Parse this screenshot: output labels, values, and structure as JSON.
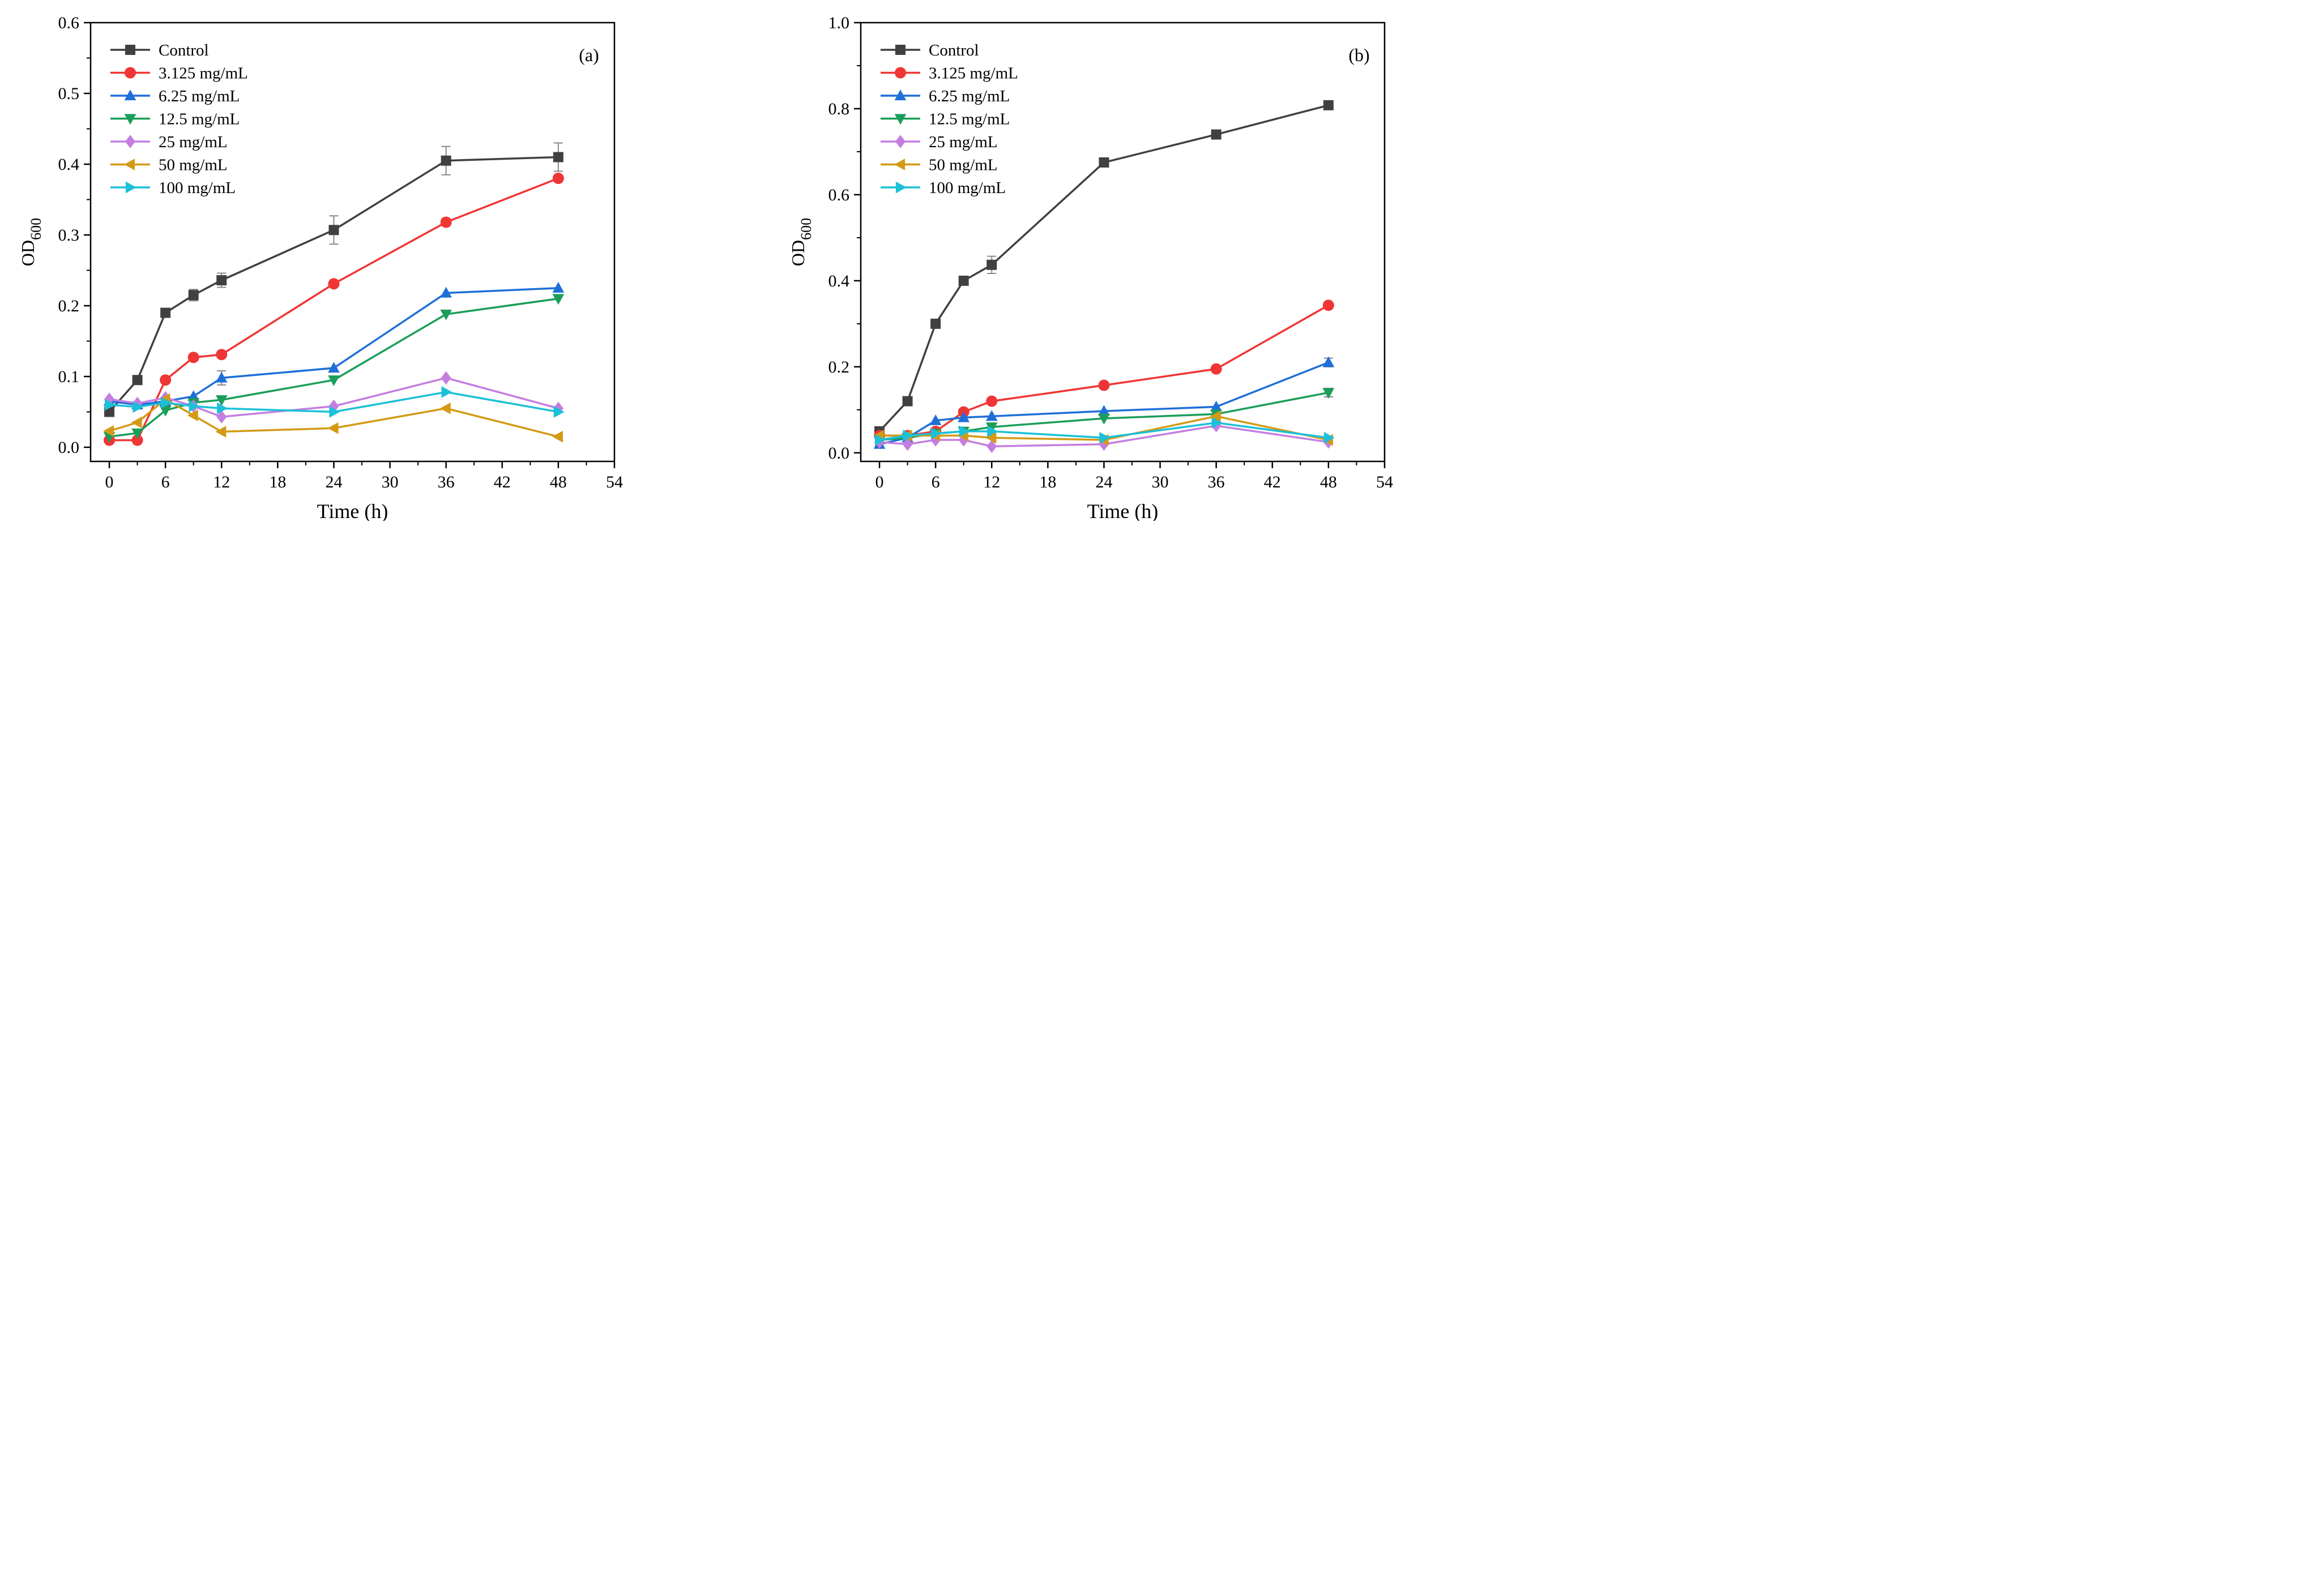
{
  "chart_data": [
    {
      "type": "line",
      "panel_label": "(a)",
      "xlabel": "Time (h)",
      "ylabel_main": "OD",
      "ylabel_sub": "600",
      "xlim": [
        -2,
        54
      ],
      "ylim": [
        -0.02,
        0.6
      ],
      "xticks": [
        0,
        6,
        12,
        18,
        24,
        30,
        36,
        42,
        48,
        54
      ],
      "xtick_labels": [
        "0",
        "6",
        "12",
        "18",
        "24",
        "30",
        "36",
        "42",
        "48",
        "54"
      ],
      "yticks": [
        0.0,
        0.1,
        0.2,
        0.3,
        0.4,
        0.5,
        0.6
      ],
      "ytick_labels": [
        "0.0",
        "0.1",
        "0.2",
        "0.3",
        "0.4",
        "0.5",
        "0.6"
      ],
      "legend_position": "top-left",
      "x": [
        0,
        3,
        6,
        9,
        12,
        24,
        36,
        48
      ],
      "series": [
        {
          "name": "Control",
          "color": "#404040",
          "marker": "square",
          "values": [
            0.05,
            0.095,
            0.19,
            0.215,
            0.236,
            0.307,
            0.405,
            0.41
          ],
          "errors": [
            0,
            0,
            0.005,
            0.008,
            0.01,
            0.02,
            0.02,
            0.02
          ]
        },
        {
          "name": "3.125 mg/mL",
          "color": "#f03535",
          "marker": "circle",
          "values": [
            0.01,
            0.01,
            0.095,
            0.127,
            0.131,
            0.231,
            0.318,
            0.38
          ],
          "errors": [
            0,
            0,
            0,
            0,
            0,
            0,
            0.005,
            0
          ]
        },
        {
          "name": "6.25 mg/mL",
          "color": "#1f6fd8",
          "marker": "triangle-up",
          "values": [
            0.065,
            0.06,
            0.065,
            0.072,
            0.098,
            0.112,
            0.218,
            0.225
          ],
          "errors": [
            0,
            0,
            0,
            0,
            0.01,
            0,
            0,
            0
          ]
        },
        {
          "name": "12.5 mg/mL",
          "color": "#1a9e5a",
          "marker": "triangle-down",
          "values": [
            0.015,
            0.02,
            0.052,
            0.063,
            0.067,
            0.095,
            0.188,
            0.21
          ],
          "errors": [
            0,
            0,
            0,
            0,
            0,
            0,
            0,
            0
          ]
        },
        {
          "name": "25 mg/mL",
          "color": "#c47ee0",
          "marker": "diamond",
          "values": [
            0.068,
            0.062,
            0.07,
            0.058,
            0.043,
            0.058,
            0.098,
            0.055
          ],
          "errors": [
            0,
            0,
            0,
            0,
            0,
            0,
            0,
            0
          ]
        },
        {
          "name": "50 mg/mL",
          "color": "#d49a15",
          "marker": "triangle-left",
          "values": [
            0.023,
            0.035,
            0.068,
            0.045,
            0.022,
            0.027,
            0.055,
            0.015
          ],
          "errors": [
            0,
            0,
            0,
            0,
            0,
            0,
            0,
            0
          ]
        },
        {
          "name": "100 mg/mL",
          "color": "#1cc0d8",
          "marker": "triangle-right",
          "values": [
            0.06,
            0.057,
            0.063,
            0.058,
            0.055,
            0.05,
            0.078,
            0.05
          ],
          "errors": [
            0,
            0,
            0,
            0,
            0,
            0,
            0,
            0
          ]
        }
      ]
    },
    {
      "type": "line",
      "panel_label": "(b)",
      "xlabel": "Time (h)",
      "ylabel_main": "OD",
      "ylabel_sub": "600",
      "xlim": [
        -2,
        54
      ],
      "ylim": [
        -0.02,
        1.0
      ],
      "xticks": [
        0,
        6,
        12,
        18,
        24,
        30,
        36,
        42,
        48,
        54
      ],
      "xtick_labels": [
        "0",
        "6",
        "12",
        "18",
        "24",
        "30",
        "36",
        "42",
        "48",
        "54"
      ],
      "yticks": [
        0.0,
        0.2,
        0.4,
        0.6,
        0.8,
        1.0
      ],
      "ytick_labels": [
        "0.0",
        "0.2",
        "0.4",
        "0.6",
        "0.8",
        "1.0"
      ],
      "legend_position": "top-left",
      "x": [
        0,
        3,
        6,
        9,
        12,
        24,
        36,
        48
      ],
      "series": [
        {
          "name": "Control",
          "color": "#404040",
          "marker": "square",
          "values": [
            0.05,
            0.12,
            0.3,
            0.4,
            0.437,
            0.675,
            0.74,
            0.808
          ],
          "errors": [
            0,
            0,
            0,
            0.01,
            0.02,
            0,
            0,
            0
          ]
        },
        {
          "name": "3.125 mg/mL",
          "color": "#f03535",
          "marker": "circle",
          "values": [
            0.04,
            0.04,
            0.05,
            0.095,
            0.12,
            0.157,
            0.195,
            0.343
          ],
          "errors": [
            0,
            0,
            0,
            0,
            0,
            0,
            0,
            0
          ]
        },
        {
          "name": "6.25 mg/mL",
          "color": "#1f6fd8",
          "marker": "triangle-up",
          "values": [
            0.02,
            0.035,
            0.075,
            0.082,
            0.085,
            0.097,
            0.107,
            0.21
          ],
          "errors": [
            0,
            0,
            0,
            0,
            0,
            0,
            0,
            0.01
          ]
        },
        {
          "name": "12.5 mg/mL",
          "color": "#1a9e5a",
          "marker": "triangle-down",
          "values": [
            0.03,
            0.035,
            0.045,
            0.05,
            0.06,
            0.08,
            0.09,
            0.14
          ],
          "errors": [
            0,
            0,
            0,
            0,
            0,
            0,
            0,
            0.01
          ]
        },
        {
          "name": "25 mg/mL",
          "color": "#c47ee0",
          "marker": "diamond",
          "values": [
            0.025,
            0.02,
            0.03,
            0.03,
            0.015,
            0.02,
            0.063,
            0.025
          ],
          "errors": [
            0,
            0,
            0,
            0,
            0,
            0,
            0,
            0
          ]
        },
        {
          "name": "50 mg/mL",
          "color": "#d49a15",
          "marker": "triangle-left",
          "values": [
            0.04,
            0.04,
            0.04,
            0.04,
            0.035,
            0.03,
            0.085,
            0.03
          ],
          "errors": [
            0,
            0,
            0,
            0,
            0,
            0,
            0,
            0
          ]
        },
        {
          "name": "100 mg/mL",
          "color": "#1cc0d8",
          "marker": "triangle-right",
          "values": [
            0.03,
            0.04,
            0.045,
            0.05,
            0.05,
            0.035,
            0.07,
            0.035
          ],
          "errors": [
            0,
            0,
            0,
            0,
            0,
            0,
            0,
            0
          ]
        }
      ]
    }
  ]
}
